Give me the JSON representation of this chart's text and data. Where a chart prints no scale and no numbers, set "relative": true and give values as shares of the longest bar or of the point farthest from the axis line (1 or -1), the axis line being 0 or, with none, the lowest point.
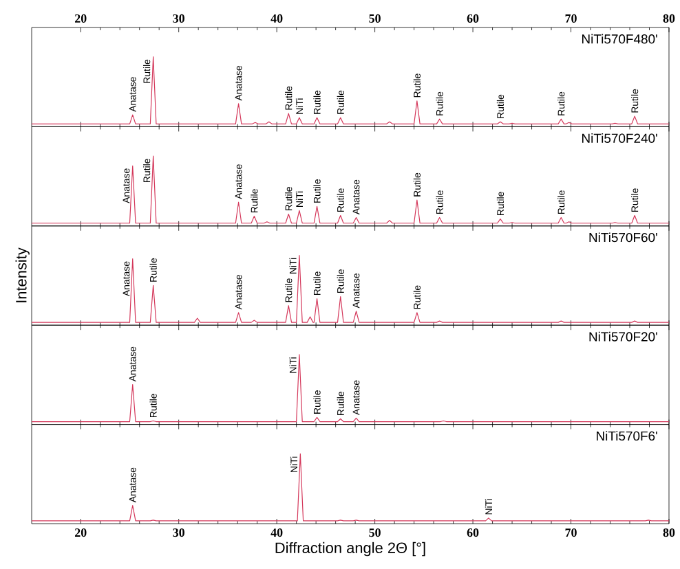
{
  "chart_data": [
    {
      "type": "line",
      "title": "NiTi570F480'",
      "relative": true,
      "color": "#d4375a",
      "xlim": [
        15,
        80
      ],
      "xticks": [
        20,
        30,
        40,
        50,
        60,
        70,
        80
      ],
      "tick_labels": "x",
      "x": [
        15,
        25.0,
        25.3,
        25.6,
        27.1,
        27.4,
        27.7,
        35.8,
        36.1,
        36.4,
        37.5,
        37.8,
        38.1,
        38.9,
        39.2,
        39.5,
        40.9,
        41.2,
        41.5,
        42.0,
        42.3,
        42.6,
        43.8,
        44.1,
        44.4,
        46.2,
        46.5,
        46.8,
        51.2,
        51.5,
        51.8,
        54.0,
        54.3,
        54.6,
        56.3,
        56.6,
        56.9,
        62.5,
        62.8,
        63.1,
        63.7,
        64.0,
        64.3,
        68.7,
        69.0,
        69.3,
        69.5,
        69.8,
        70.1,
        74.2,
        74.5,
        74.8,
        76.2,
        76.5,
        76.8,
        80
      ],
      "values": [
        0.04,
        0.04,
        0.17,
        0.04,
        0.04,
        1.0,
        0.04,
        0.04,
        0.33,
        0.04,
        0.04,
        0.06,
        0.04,
        0.04,
        0.07,
        0.04,
        0.04,
        0.19,
        0.04,
        0.04,
        0.13,
        0.04,
        0.04,
        0.13,
        0.04,
        0.04,
        0.13,
        0.04,
        0.04,
        0.07,
        0.04,
        0.04,
        0.37,
        0.04,
        0.04,
        0.11,
        0.04,
        0.04,
        0.07,
        0.04,
        0.04,
        0.05,
        0.04,
        0.04,
        0.11,
        0.04,
        0.04,
        0.06,
        0.04,
        0.04,
        0.05,
        0.04,
        0.04,
        0.15,
        0.04,
        0.04
      ],
      "annotations": [
        {
          "text": "Anatase",
          "x": 25.3,
          "y": 0.17
        },
        {
          "text": "Rutile",
          "x": 27.4,
          "y": 1.0
        },
        {
          "text": "Anatase",
          "x": 36.1,
          "y": 0.33
        },
        {
          "text": "Rutile",
          "x": 41.2,
          "y": 0.19
        },
        {
          "text": "NiTi",
          "x": 42.3,
          "y": 0.13
        },
        {
          "text": "Rutile",
          "x": 44.1,
          "y": 0.13
        },
        {
          "text": "Rutile",
          "x": 46.5,
          "y": 0.13
        },
        {
          "text": "Rutile",
          "x": 54.3,
          "y": 0.37
        },
        {
          "text": "Rutile",
          "x": 56.6,
          "y": 0.11
        },
        {
          "text": "Rutile",
          "x": 62.8,
          "y": 0.07
        },
        {
          "text": "Rutile",
          "x": 69.0,
          "y": 0.11
        },
        {
          "text": "Rutile",
          "x": 76.5,
          "y": 0.15
        }
      ]
    },
    {
      "type": "line",
      "title": "NiTi570F240'",
      "relative": true,
      "color": "#d4375a",
      "xlim": [
        15,
        80
      ],
      "xticks": [
        20,
        30,
        40,
        50,
        60,
        70,
        80
      ],
      "tick_labels": false,
      "x": [
        15,
        25.0,
        25.3,
        25.6,
        27.1,
        27.4,
        27.7,
        35.8,
        36.1,
        36.4,
        37.4,
        37.7,
        38.0,
        38.7,
        39.0,
        39.3,
        40.9,
        41.2,
        41.5,
        42.0,
        42.3,
        42.6,
        43.8,
        44.1,
        44.4,
        46.2,
        46.5,
        46.8,
        47.8,
        48.1,
        48.4,
        51.2,
        51.5,
        51.8,
        54.0,
        54.3,
        54.6,
        56.3,
        56.6,
        56.9,
        62.5,
        62.8,
        63.1,
        63.7,
        64.0,
        64.3,
        68.7,
        69.0,
        69.3,
        69.5,
        69.8,
        70.1,
        74.2,
        74.5,
        74.8,
        76.2,
        76.5,
        76.8,
        80
      ],
      "values": [
        0.04,
        0.04,
        0.86,
        0.04,
        0.04,
        1.0,
        0.04,
        0.04,
        0.34,
        0.04,
        0.04,
        0.14,
        0.04,
        0.04,
        0.06,
        0.04,
        0.04,
        0.17,
        0.04,
        0.04,
        0.22,
        0.04,
        0.04,
        0.28,
        0.04,
        0.04,
        0.15,
        0.04,
        0.04,
        0.12,
        0.04,
        0.04,
        0.08,
        0.04,
        0.04,
        0.37,
        0.04,
        0.04,
        0.12,
        0.04,
        0.04,
        0.1,
        0.04,
        0.04,
        0.05,
        0.04,
        0.04,
        0.12,
        0.04,
        0.04,
        0.06,
        0.04,
        0.04,
        0.05,
        0.04,
        0.04,
        0.15,
        0.04,
        0.04
      ],
      "annotations": [
        {
          "text": "Anatase",
          "x": 25.3,
          "y": 0.86
        },
        {
          "text": "Rutile",
          "x": 27.4,
          "y": 1.0
        },
        {
          "text": "Anatase",
          "x": 36.1,
          "y": 0.34
        },
        {
          "text": "Rutile",
          "x": 37.7,
          "y": 0.14
        },
        {
          "text": "Rutile",
          "x": 41.2,
          "y": 0.17
        },
        {
          "text": "NiTi",
          "x": 42.3,
          "y": 0.22
        },
        {
          "text": "Rutile",
          "x": 44.1,
          "y": 0.28
        },
        {
          "text": "Rutile",
          "x": 46.5,
          "y": 0.15
        },
        {
          "text": "Anatase",
          "x": 48.1,
          "y": 0.12
        },
        {
          "text": "Rutile",
          "x": 54.3,
          "y": 0.37
        },
        {
          "text": "Rutile",
          "x": 56.6,
          "y": 0.12
        },
        {
          "text": "Rutile",
          "x": 62.8,
          "y": 0.1
        },
        {
          "text": "Rutile",
          "x": 69.0,
          "y": 0.12
        },
        {
          "text": "Rutile",
          "x": 76.5,
          "y": 0.15
        }
      ]
    },
    {
      "type": "line",
      "title": "NiTi570F60'",
      "ylabel": "Intensity",
      "relative": true,
      "color": "#d4375a",
      "xlim": [
        15,
        80
      ],
      "xticks": [
        20,
        30,
        40,
        50,
        60,
        70,
        80
      ],
      "tick_labels": false,
      "x": [
        15,
        25.0,
        25.3,
        25.6,
        27.1,
        27.4,
        27.7,
        31.6,
        31.9,
        32.2,
        35.8,
        36.1,
        36.4,
        37.4,
        37.7,
        38.0,
        40.9,
        41.2,
        41.5,
        42.0,
        42.3,
        42.6,
        43.1,
        43.4,
        43.7,
        43.8,
        44.1,
        44.4,
        46.2,
        46.5,
        46.8,
        47.8,
        48.1,
        48.4,
        54.0,
        54.3,
        54.6,
        56.3,
        56.6,
        56.9,
        68.7,
        69.0,
        69.3,
        76.2,
        76.5,
        76.8,
        80
      ],
      "values": [
        0.04,
        0.04,
        0.95,
        0.04,
        0.04,
        0.57,
        0.04,
        0.04,
        0.1,
        0.04,
        0.04,
        0.18,
        0.04,
        0.04,
        0.07,
        0.04,
        0.04,
        0.28,
        0.04,
        0.04,
        1.0,
        0.04,
        0.04,
        0.12,
        0.04,
        0.04,
        0.38,
        0.04,
        0.04,
        0.41,
        0.04,
        0.04,
        0.2,
        0.04,
        0.04,
        0.18,
        0.04,
        0.04,
        0.06,
        0.04,
        0.04,
        0.06,
        0.04,
        0.04,
        0.06,
        0.04,
        0.04
      ],
      "annotations": [
        {
          "text": "Anatase",
          "x": 25.3,
          "y": 0.95
        },
        {
          "text": "Rutile",
          "x": 27.4,
          "y": 0.57
        },
        {
          "text": "Anatase",
          "x": 36.1,
          "y": 0.18
        },
        {
          "text": "Rutile",
          "x": 41.2,
          "y": 0.28
        },
        {
          "text": "NiTi",
          "x": 42.3,
          "y": 1.0
        },
        {
          "text": "Rutile",
          "x": 44.1,
          "y": 0.38
        },
        {
          "text": "Rutile",
          "x": 46.5,
          "y": 0.41
        },
        {
          "text": "Anatase",
          "x": 48.1,
          "y": 0.2
        },
        {
          "text": "Rutile",
          "x": 54.3,
          "y": 0.18
        }
      ]
    },
    {
      "type": "line",
      "title": "NiTi570F20'",
      "relative": true,
      "color": "#d4375a",
      "xlim": [
        15,
        80
      ],
      "xticks": [
        20,
        30,
        40,
        50,
        60,
        70,
        80
      ],
      "tick_labels": false,
      "x": [
        15,
        25.0,
        25.3,
        25.6,
        27.1,
        27.4,
        27.7,
        42.0,
        42.3,
        42.6,
        43.8,
        44.1,
        44.4,
        46.2,
        46.5,
        46.8,
        47.8,
        48.1,
        48.4,
        56.7,
        57.0,
        57.3,
        80
      ],
      "values": [
        0.04,
        0.04,
        0.57,
        0.04,
        0.04,
        0.05,
        0.04,
        0.04,
        1.0,
        0.04,
        0.04,
        0.1,
        0.04,
        0.04,
        0.08,
        0.04,
        0.04,
        0.09,
        0.04,
        0.04,
        0.05,
        0.04,
        0.04
      ],
      "annotations": [
        {
          "text": "Anatase",
          "x": 25.3,
          "y": 0.57
        },
        {
          "text": "Rutile",
          "x": 27.4,
          "y": 0.05
        },
        {
          "text": "NiTi",
          "x": 42.3,
          "y": 1.0
        },
        {
          "text": "Rutile",
          "x": 44.1,
          "y": 0.1
        },
        {
          "text": "Rutile",
          "x": 46.5,
          "y": 0.08
        },
        {
          "text": "Anatase",
          "x": 48.1,
          "y": 0.09
        }
      ]
    },
    {
      "type": "line",
      "title": "NiTi570F6'",
      "xlabel": "Diffraction angle 2Θ [°]",
      "relative": true,
      "color": "#d4375a",
      "xlim": [
        15,
        80
      ],
      "xticks": [
        20,
        30,
        40,
        50,
        60,
        70,
        80
      ],
      "tick_labels": "x",
      "x": [
        15,
        25.0,
        25.3,
        25.6,
        27.1,
        27.4,
        27.7,
        42.1,
        42.4,
        42.7,
        46.2,
        46.5,
        46.8,
        47.8,
        48.1,
        48.4,
        61.3,
        61.6,
        61.9,
        77.6,
        77.9,
        78.2,
        80
      ],
      "values": [
        0.04,
        0.04,
        0.26,
        0.04,
        0.04,
        0.05,
        0.04,
        0.04,
        1.0,
        0.04,
        0.04,
        0.05,
        0.04,
        0.04,
        0.05,
        0.04,
        0.04,
        0.08,
        0.04,
        0.04,
        0.05,
        0.04,
        0.04
      ],
      "annotations": [
        {
          "text": "Anatase",
          "x": 25.3,
          "y": 0.26
        },
        {
          "text": "NiTi",
          "x": 42.4,
          "y": 1.0
        },
        {
          "text": "NiTi",
          "x": 61.6,
          "y": 0.08
        }
      ]
    }
  ]
}
